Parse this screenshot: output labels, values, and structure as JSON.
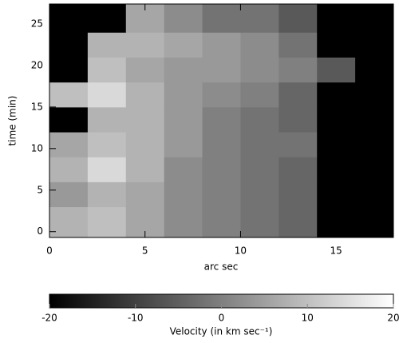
{
  "chart_data": {
    "type": "heatmap",
    "xlabel": "arc sec",
    "ylabel": "time (min)",
    "x_edges": [
      0,
      2,
      4,
      6,
      8,
      10,
      12,
      14,
      16,
      18
    ],
    "y_edges": [
      -0.7,
      3,
      6,
      9,
      12,
      15,
      18,
      21,
      24,
      27.4
    ],
    "z": [
      [
        8,
        10,
        6,
        2,
        0,
        -2,
        -4,
        -20,
        -20
      ],
      [
        4,
        8,
        6,
        2,
        0,
        -2,
        -4,
        -20,
        -20
      ],
      [
        8,
        14,
        8,
        2,
        0,
        -2,
        -4,
        -20,
        -20
      ],
      [
        6,
        10,
        8,
        4,
        0,
        -2,
        -2,
        -20,
        -20
      ],
      [
        -20,
        8,
        8,
        4,
        0,
        -2,
        -4,
        -20,
        -20
      ],
      [
        10,
        14,
        8,
        4,
        2,
        0,
        -4,
        -20,
        -20
      ],
      [
        -20,
        10,
        6,
        4,
        4,
        2,
        0,
        -6,
        -20
      ],
      [
        -20,
        8,
        8,
        6,
        4,
        2,
        -2,
        -20,
        -20
      ],
      [
        -20,
        -20,
        6,
        2,
        -2,
        -2,
        -6,
        -20,
        -20
      ]
    ],
    "xlim": [
      0,
      18
    ],
    "xticks": [
      0,
      5,
      10,
      15
    ],
    "ylim": [
      -0.7,
      27.4
    ],
    "yticks": [
      0,
      5,
      10,
      15,
      20,
      25
    ],
    "zlim": [
      -20,
      20
    ],
    "zticks": [
      -20,
      -10,
      0,
      10,
      20
    ],
    "colormap": [
      "#000000",
      "#ffffff"
    ],
    "colorbar_label": "Velocity (in km sec⁻¹)"
  }
}
